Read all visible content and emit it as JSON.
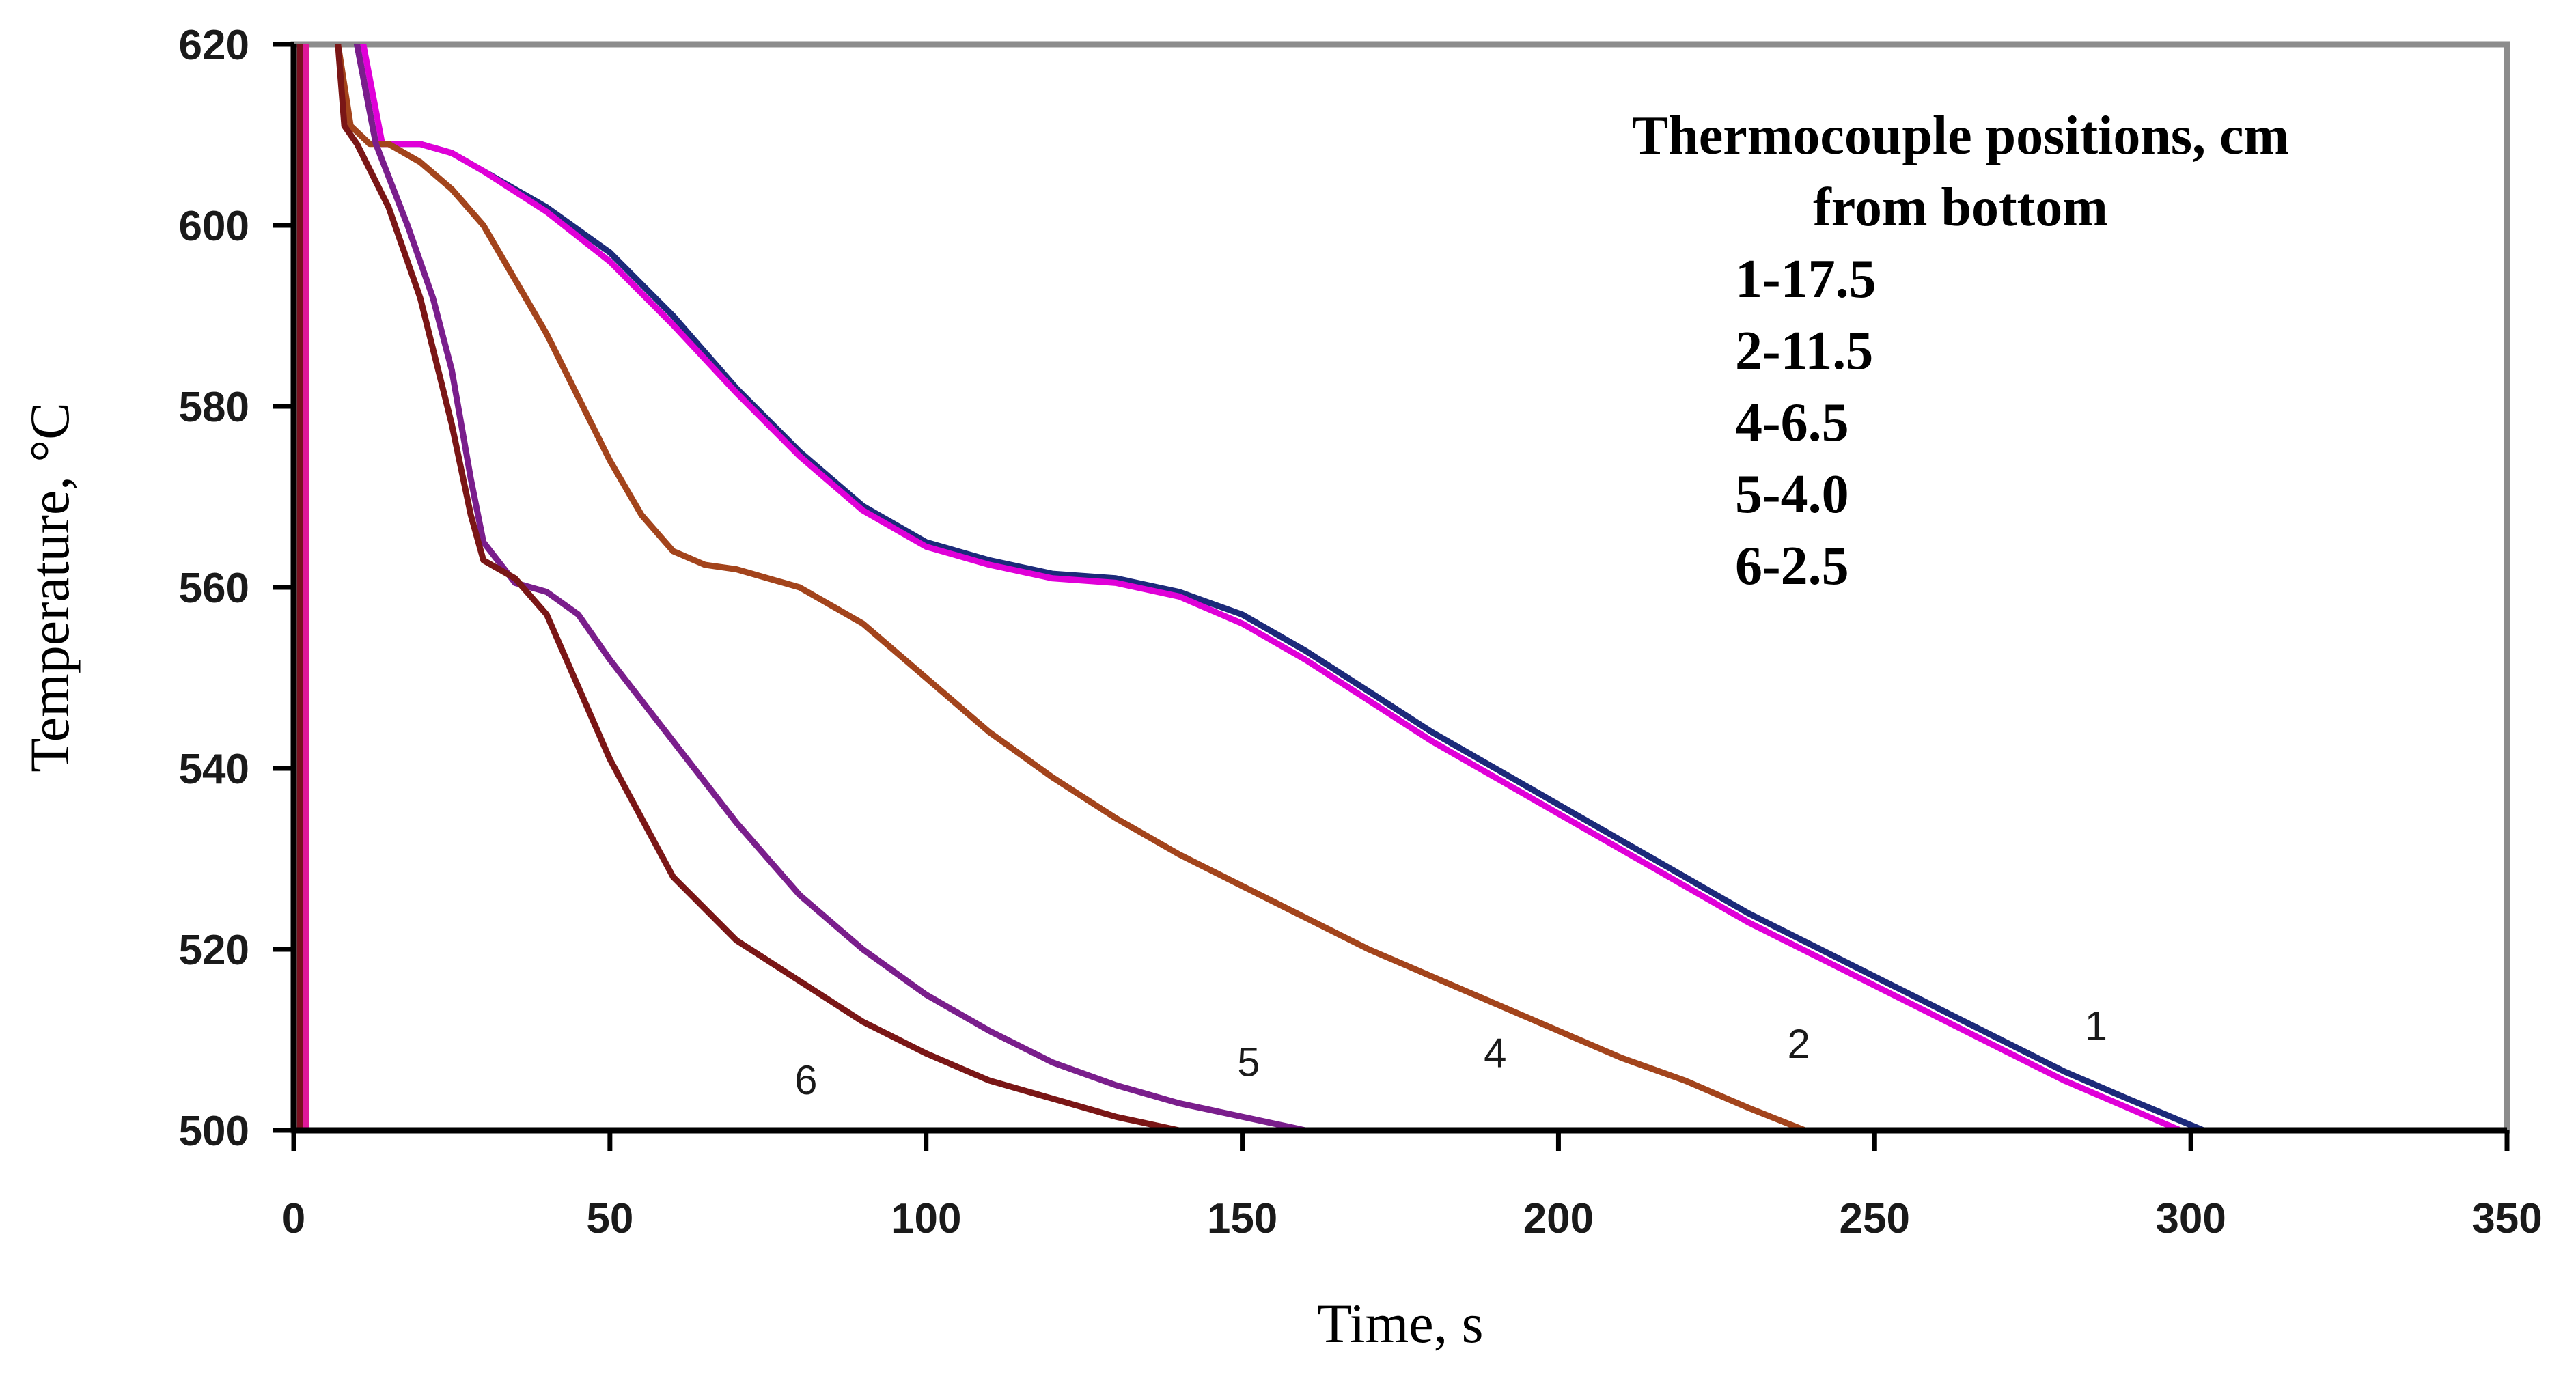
{
  "chart_data": {
    "type": "line",
    "title": "",
    "xlabel": "Time, s",
    "ylabel": "Temperature, °C",
    "xlim": [
      0,
      350
    ],
    "ylim": [
      500,
      620
    ],
    "x_ticks": [
      0,
      50,
      100,
      150,
      200,
      250,
      300,
      350
    ],
    "y_ticks": [
      500,
      520,
      540,
      560,
      580,
      600,
      620
    ],
    "grid": false,
    "legend": {
      "title_line1": "Thermocouple positions, cm",
      "title_line2": "from bottom",
      "entries": [
        "1-17.5",
        "2-11.5",
        "4-6.5",
        "5-4.0",
        "6-2.5"
      ],
      "placement": "top-right"
    },
    "vertical_lines": [
      {
        "x": 1,
        "color": "#7a1020"
      },
      {
        "x": 2,
        "color": "#e0189a"
      }
    ],
    "series": [
      {
        "name": "1",
        "label": "1",
        "label_at": [
          285,
          510
        ],
        "color": "#1c2a7a",
        "x": [
          10,
          13,
          20,
          25,
          30,
          40,
          50,
          60,
          70,
          80,
          90,
          100,
          110,
          120,
          130,
          140,
          150,
          160,
          170,
          180,
          190,
          200,
          210,
          220,
          230,
          240,
          250,
          260,
          270,
          280,
          290,
          302
        ],
        "y": [
          620,
          609,
          609,
          608,
          606,
          602,
          597,
          590,
          582,
          575,
          569,
          565,
          563,
          561.5,
          561,
          559.5,
          557,
          553,
          548.5,
          544,
          540,
          536,
          532,
          528,
          524,
          520.5,
          517,
          513.5,
          510,
          506.5,
          503.5,
          500
        ]
      },
      {
        "name": "2",
        "label": "2",
        "label_at": [
          238,
          508
        ],
        "color": "#e000d8",
        "x": [
          11,
          14,
          20,
          25,
          30,
          40,
          50,
          60,
          70,
          80,
          90,
          100,
          110,
          120,
          130,
          140,
          150,
          160,
          170,
          180,
          190,
          200,
          210,
          220,
          230,
          240,
          250,
          260,
          270,
          280,
          290,
          300
        ],
        "y": [
          620,
          609,
          609,
          608,
          606,
          601.5,
          596,
          589,
          581.5,
          574.5,
          568.5,
          564.5,
          562.5,
          561,
          560.5,
          559,
          556,
          552,
          547.5,
          543,
          539,
          535,
          531,
          527,
          523,
          519.5,
          516,
          512.5,
          509,
          505.5,
          502.5,
          499.5
        ]
      },
      {
        "name": "4",
        "label": "4",
        "label_at": [
          190,
          507
        ],
        "color": "#a3441c",
        "x": [
          7,
          9,
          12,
          15,
          20,
          25,
          30,
          35,
          40,
          45,
          50,
          55,
          60,
          65,
          70,
          80,
          90,
          100,
          110,
          120,
          130,
          140,
          150,
          160,
          170,
          180,
          190,
          200,
          210,
          220,
          230,
          239
        ],
        "y": [
          620,
          611,
          609,
          609,
          607,
          604,
          600,
          594,
          588,
          581,
          574,
          568,
          564,
          562.5,
          562,
          560,
          556,
          550,
          544,
          539,
          534.5,
          530.5,
          527,
          523.5,
          520,
          517,
          514,
          511,
          508,
          505.5,
          502.5,
          500
        ]
      },
      {
        "name": "5",
        "label": "5",
        "label_at": [
          151,
          506
        ],
        "color": "#7a1e8c",
        "x": [
          10,
          13,
          18,
          22,
          25,
          28,
          30,
          35,
          40,
          45,
          50,
          60,
          70,
          80,
          90,
          100,
          110,
          120,
          130,
          140,
          150,
          160
        ],
        "y": [
          620,
          609,
          600,
          592,
          584,
          572,
          565,
          560.5,
          559.5,
          557,
          552,
          543,
          534,
          526,
          520,
          515,
          511,
          507.5,
          505,
          503,
          501.5,
          500
        ]
      },
      {
        "name": "6",
        "label": "6",
        "label_at": [
          81,
          504
        ],
        "color": "#7a1616",
        "x": [
          7,
          8,
          10,
          15,
          20,
          25,
          28,
          30,
          35,
          40,
          45,
          50,
          60,
          70,
          80,
          90,
          100,
          110,
          120,
          130,
          140,
          145
        ],
        "y": [
          620,
          611,
          609,
          602,
          592,
          578,
          568,
          563,
          561,
          557,
          549,
          541,
          528,
          521,
          516.5,
          512,
          508.5,
          505.5,
          503.5,
          501.5,
          500,
          499.5
        ]
      }
    ]
  }
}
